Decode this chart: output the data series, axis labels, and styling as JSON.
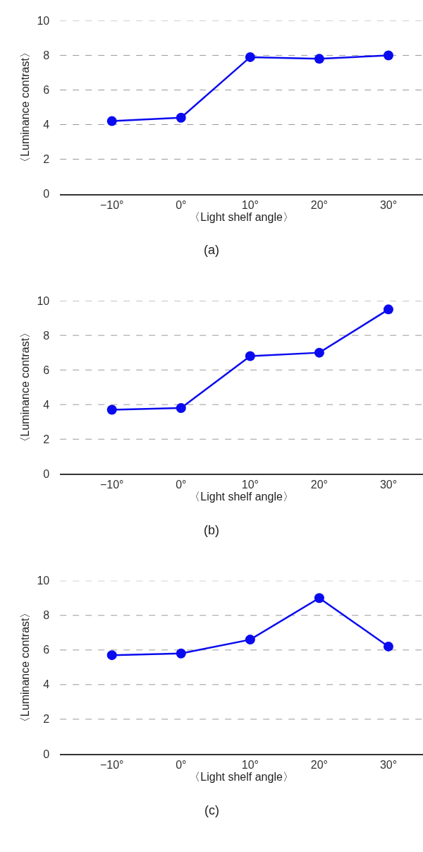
{
  "chart_data": [
    {
      "type": "line",
      "title": "(a)",
      "xlabel": "〈Light shelf angle〉",
      "ylabel": "〈Luminance contrast〉",
      "categories": [
        "−10°",
        "0°",
        "10°",
        "20°",
        "30°"
      ],
      "series": [
        {
          "color": "#0a0af0",
          "values": [
            4.2,
            4.4,
            7.9,
            7.8,
            8.0
          ]
        }
      ],
      "ylim": [
        0,
        10
      ],
      "yticks": [
        0,
        2,
        4,
        6,
        8,
        10
      ],
      "grid": "y",
      "marker": "circle",
      "line_style": "solid"
    },
    {
      "type": "line",
      "title": "(b)",
      "xlabel": "〈Light shelf angle〉",
      "ylabel": "〈Luminance contrast〉",
      "categories": [
        "−10°",
        "0°",
        "10°",
        "20°",
        "30°"
      ],
      "series": [
        {
          "color": "#0a0af0",
          "values": [
            3.7,
            3.8,
            6.8,
            7.0,
            9.5
          ]
        }
      ],
      "ylim": [
        0,
        10
      ],
      "yticks": [
        0,
        2,
        4,
        6,
        8,
        10
      ],
      "grid": "y",
      "marker": "circle",
      "line_style": "solid"
    },
    {
      "type": "line",
      "title": "(c)",
      "xlabel": "〈Light shelf angle〉",
      "ylabel": "〈Luminance contrast〉",
      "categories": [
        "−10°",
        "0°",
        "10°",
        "20°",
        "30°"
      ],
      "series": [
        {
          "color": "#0a0af0",
          "values": [
            5.7,
            5.8,
            6.6,
            9.0,
            6.2
          ]
        }
      ],
      "ylim": [
        0,
        10
      ],
      "yticks": [
        0,
        2,
        4,
        6,
        8,
        10
      ],
      "grid": "y",
      "marker": "circle",
      "line_style": "solid"
    }
  ]
}
